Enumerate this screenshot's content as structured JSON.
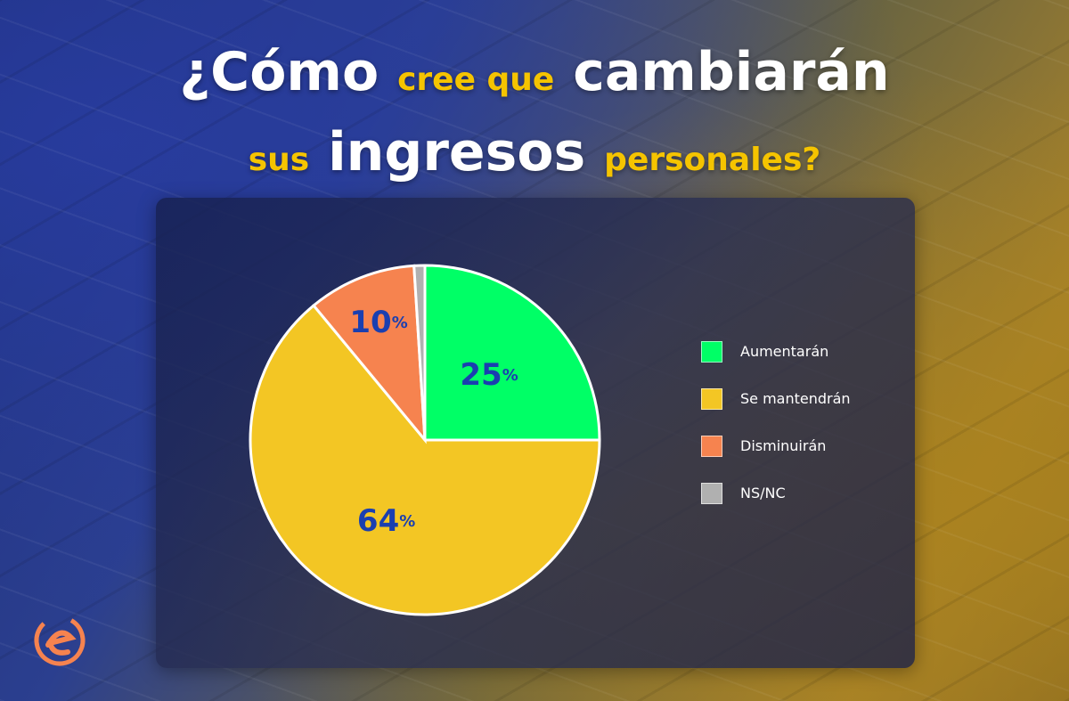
{
  "title": {
    "part1": "¿Cómo",
    "part2": "cree que",
    "part3": "cambiarán",
    "part4": "sus",
    "part5": "ingresos",
    "part6": "personales?"
  },
  "colors": {
    "aumentaran": "#00ff66",
    "se_mantendran": "#f3c624",
    "disminuiran": "#f6834f",
    "nsnc": "#b0b0b0",
    "label": "#1a3fb0",
    "title_accent": "#f5c400"
  },
  "logo_icon": "e-logo-icon",
  "chart_data": {
    "type": "pie",
    "categories": [
      "Aumentarán",
      "Se mantendrán",
      "Disminuirán",
      "NS/NC"
    ],
    "values": [
      25,
      64,
      10,
      1
    ],
    "data_labels": [
      "25",
      "64",
      "10",
      ""
    ],
    "unit": "%",
    "legend": "right"
  }
}
